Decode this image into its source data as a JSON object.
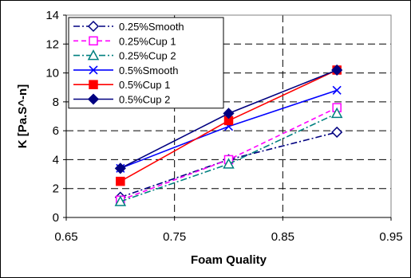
{
  "chart_data": {
    "type": "line",
    "xlabel": "Foam Quality",
    "ylabel": "K [Pa.S^-n]",
    "xlim": [
      0.65,
      0.95
    ],
    "ylim": [
      0,
      14
    ],
    "xticks": [
      "0.65",
      "0.75",
      "0.85",
      "0.95"
    ],
    "yticks": [
      "0",
      "2",
      "4",
      "6",
      "8",
      "10",
      "12",
      "14"
    ],
    "xtick_values": [
      0.65,
      0.75,
      0.85,
      0.95
    ],
    "ytick_values": [
      0,
      2,
      4,
      6,
      8,
      10,
      12,
      14
    ],
    "grid": true,
    "legend_position": "top-left",
    "x": [
      0.7,
      0.8,
      0.9
    ],
    "series": [
      {
        "name": "0.25%Smooth",
        "values": [
          1.4,
          4.0,
          5.9
        ],
        "color": "#000080",
        "dash": "dashdot",
        "marker": "diamond-open"
      },
      {
        "name": "0.25%Cup 1",
        "values": [
          1.2,
          4.0,
          7.6
        ],
        "color": "#FF00FF",
        "dash": "dashed",
        "marker": "square-open"
      },
      {
        "name": "0.25%Cup 2",
        "values": [
          1.1,
          3.7,
          7.2
        ],
        "color": "#008080",
        "dash": "dashdot",
        "marker": "triangle-open"
      },
      {
        "name": "0.5%Smooth",
        "values": [
          3.4,
          6.3,
          8.8
        ],
        "color": "#0000FF",
        "dash": "solid",
        "marker": "x"
      },
      {
        "name": "0.5%Cup 1",
        "values": [
          2.5,
          6.7,
          10.2
        ],
        "color": "#FF0000",
        "dash": "solid",
        "marker": "square-filled"
      },
      {
        "name": "0.5%Cup 2",
        "values": [
          3.4,
          7.2,
          10.2
        ],
        "color": "#000080",
        "dash": "solid",
        "marker": "diamond-filled"
      }
    ]
  }
}
